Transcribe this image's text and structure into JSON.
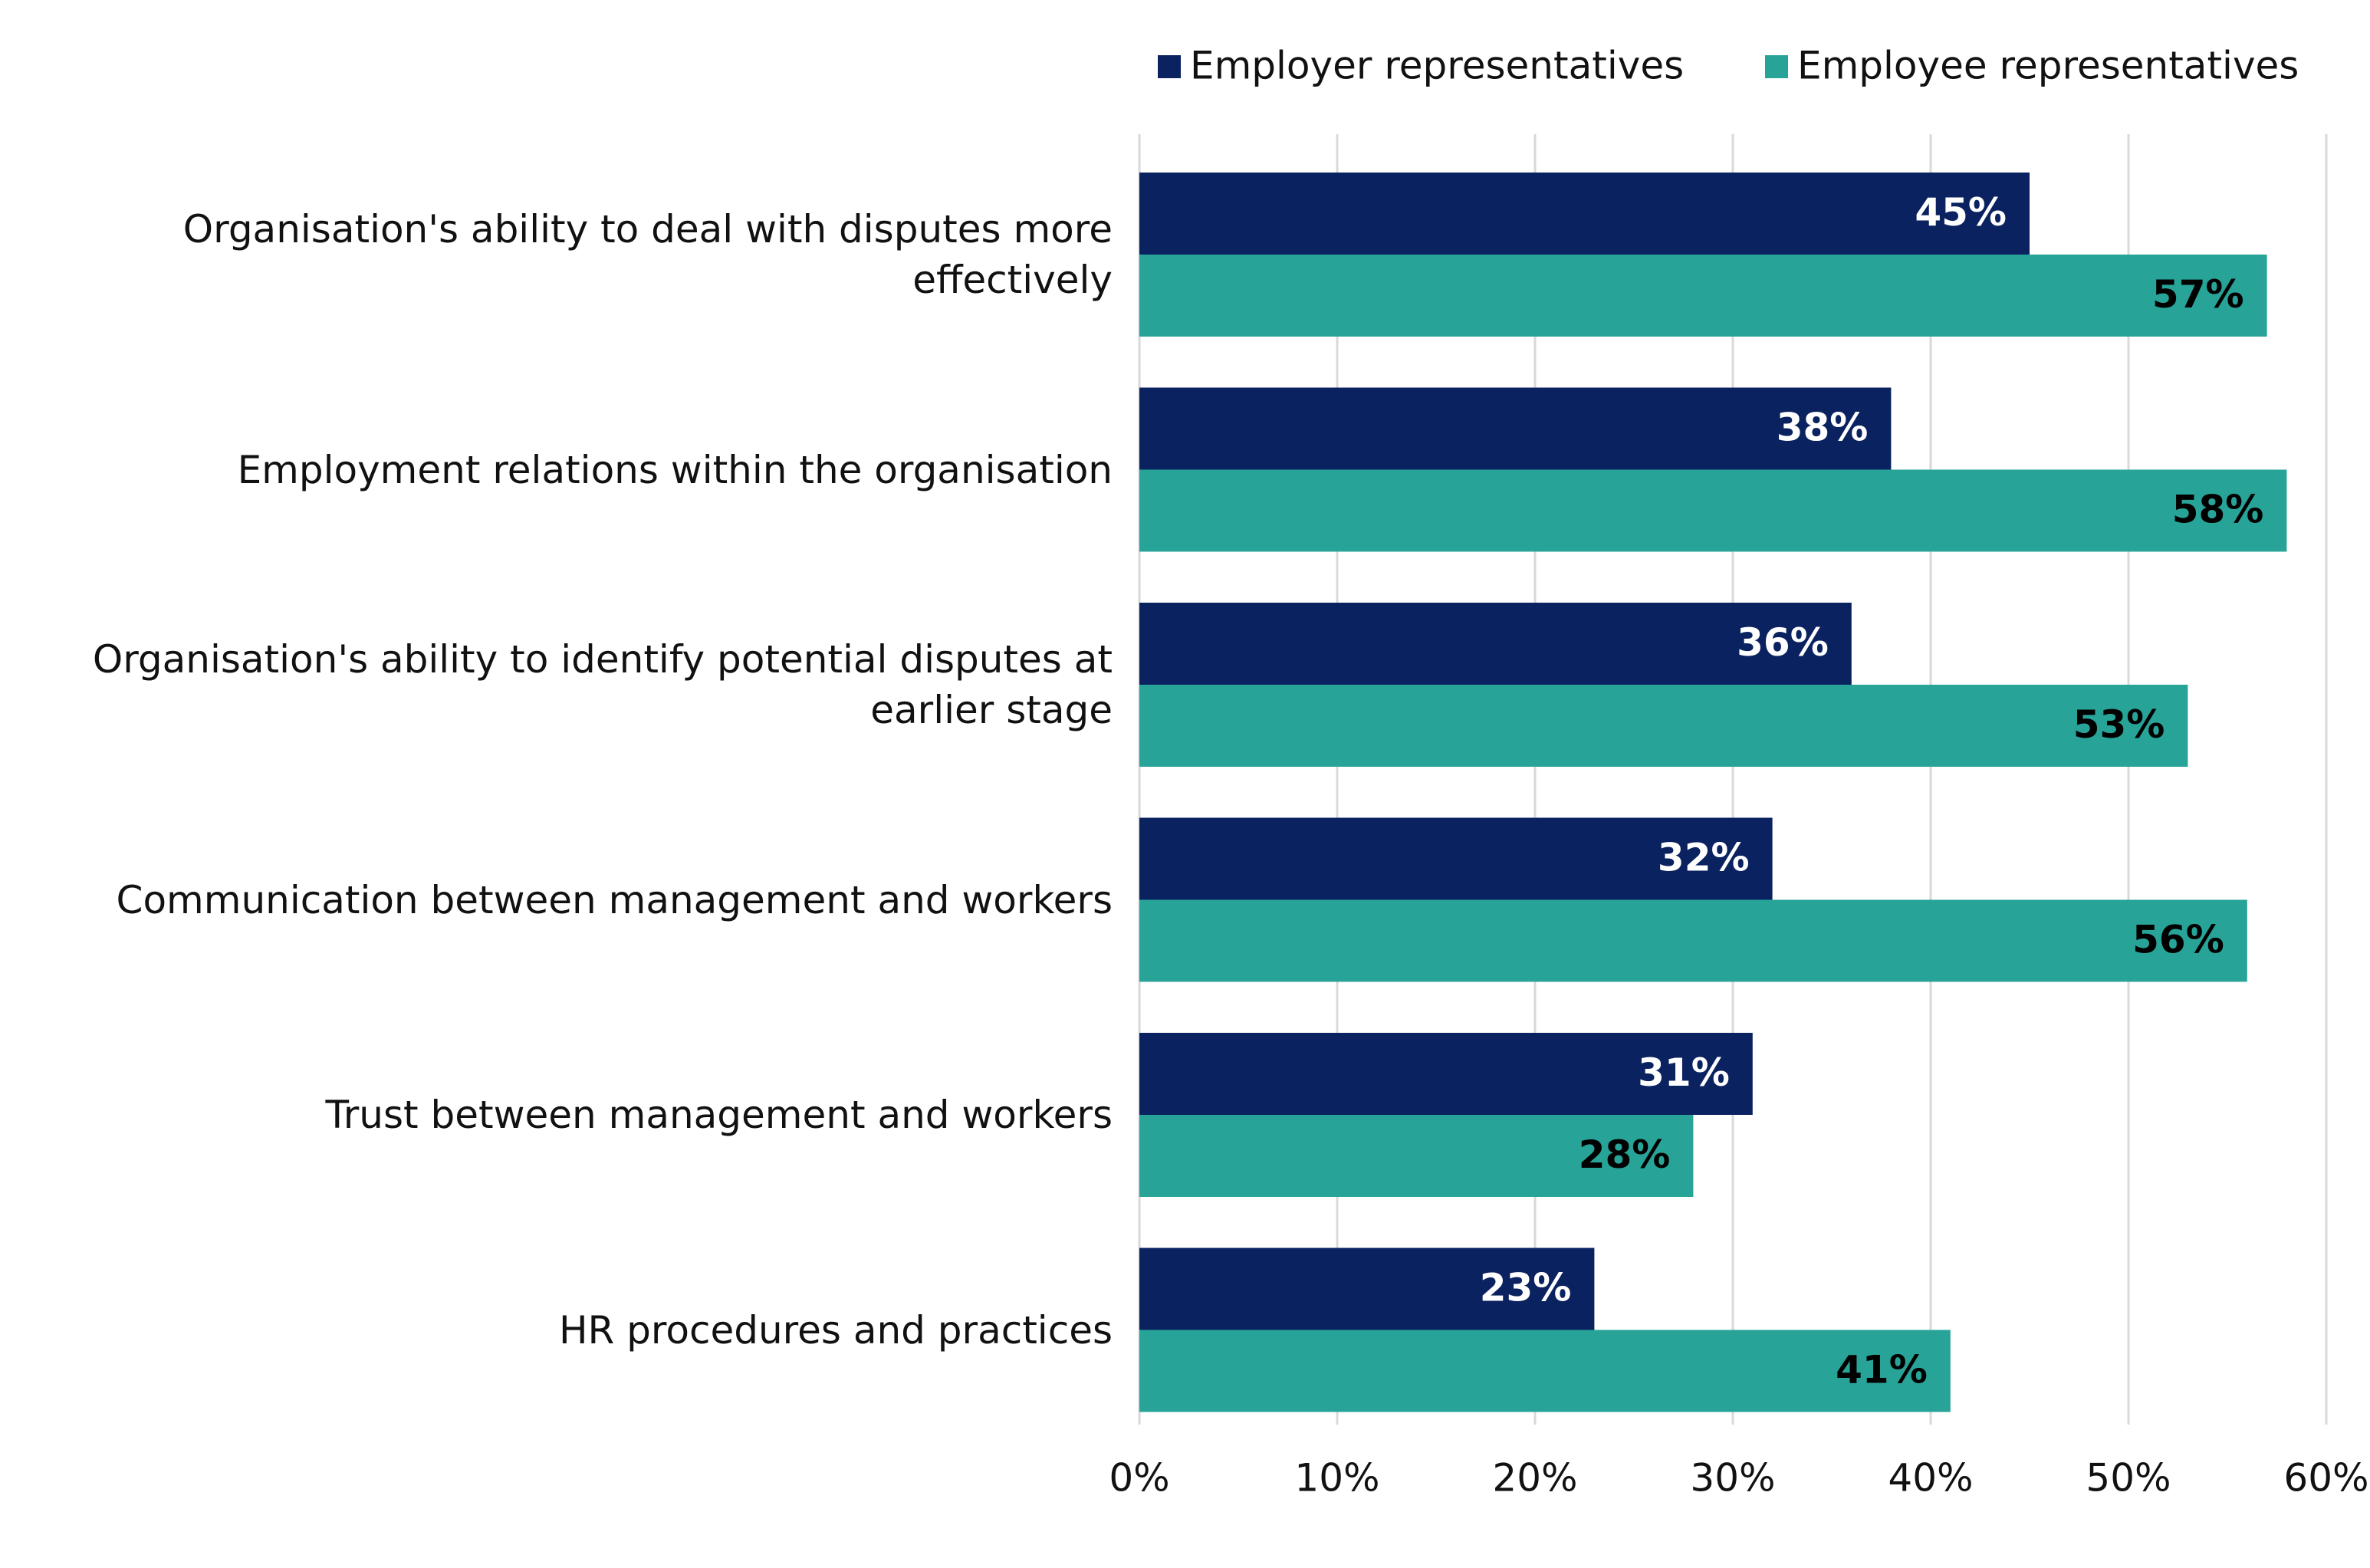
{
  "chart_data": {
    "type": "bar",
    "orientation": "horizontal",
    "categories": [
      "Organisation's ability to deal with disputes more effectively",
      "Employment relations within the organisation",
      "Organisation's ability to identify potential disputes at earlier stage",
      "Communication between management and workers",
      "Trust between management and workers",
      "HR procedures and practices"
    ],
    "series": [
      {
        "name": "Employer representatives",
        "color": "#0b2260",
        "values": [
          45,
          38,
          36,
          32,
          31,
          23
        ],
        "value_labels": [
          "45%",
          "38%",
          "36%",
          "32%",
          "31%",
          "23%"
        ]
      },
      {
        "name": "Employee representatives",
        "color": "#27a398",
        "values": [
          57,
          58,
          53,
          56,
          28,
          41
        ],
        "value_labels": [
          "57%",
          "58%",
          "53%",
          "56%",
          "28%",
          "41%"
        ]
      }
    ],
    "xlim": [
      0,
      60
    ],
    "xticks": [
      {
        "value": 0,
        "label": "0%"
      },
      {
        "value": 10,
        "label": "10%"
      },
      {
        "value": 20,
        "label": "20%"
      },
      {
        "value": 30,
        "label": "30%"
      },
      {
        "value": 40,
        "label": "40%"
      },
      {
        "value": 50,
        "label": "50%"
      },
      {
        "value": 60,
        "label": "60%"
      }
    ],
    "grid": true,
    "legend": "top-right"
  }
}
